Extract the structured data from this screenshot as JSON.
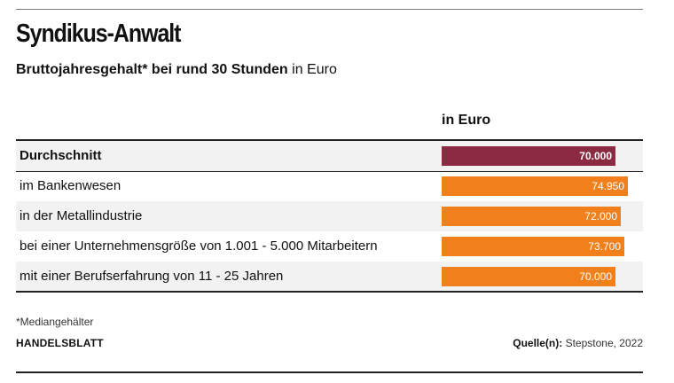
{
  "header": {
    "title": "Syndikus-Anwalt",
    "subtitle_bold": "Bruttojahresgehalt* bei rund 30 Stunden",
    "subtitle_rest": " in Euro"
  },
  "table": {
    "column_header": "in Euro"
  },
  "colors": {
    "highlight": "#8b2a40",
    "bar": "#f07f1c"
  },
  "chart_data": {
    "type": "bar",
    "orientation": "horizontal",
    "title": "Syndikus-Anwalt",
    "subtitle": "Bruttojahresgehalt* bei rund 30 Stunden in Euro",
    "xlabel": "in Euro",
    "xlim": [
      0,
      100000
    ],
    "categories": [
      "Durchschnitt",
      "im Bankenwesen",
      "in der Metallindustrie",
      "bei einer Unternehmensgröße von 1.001 - 5.000 Mitarbeitern",
      "mit einer Berufserfahrung von 11 - 25 Jahren"
    ],
    "values": [
      70000,
      74950,
      72000,
      73700,
      70000
    ],
    "value_labels": [
      "70.000",
      "74.950",
      "72.000",
      "73.700",
      "70.000"
    ],
    "highlighted": [
      true,
      false,
      false,
      false,
      false
    ]
  },
  "footer": {
    "footnote": "*Mediangehälter",
    "brand": "HANDELSBLATT",
    "source_label": "Quelle(n):",
    "source_text": " Stepstone, 2022"
  }
}
